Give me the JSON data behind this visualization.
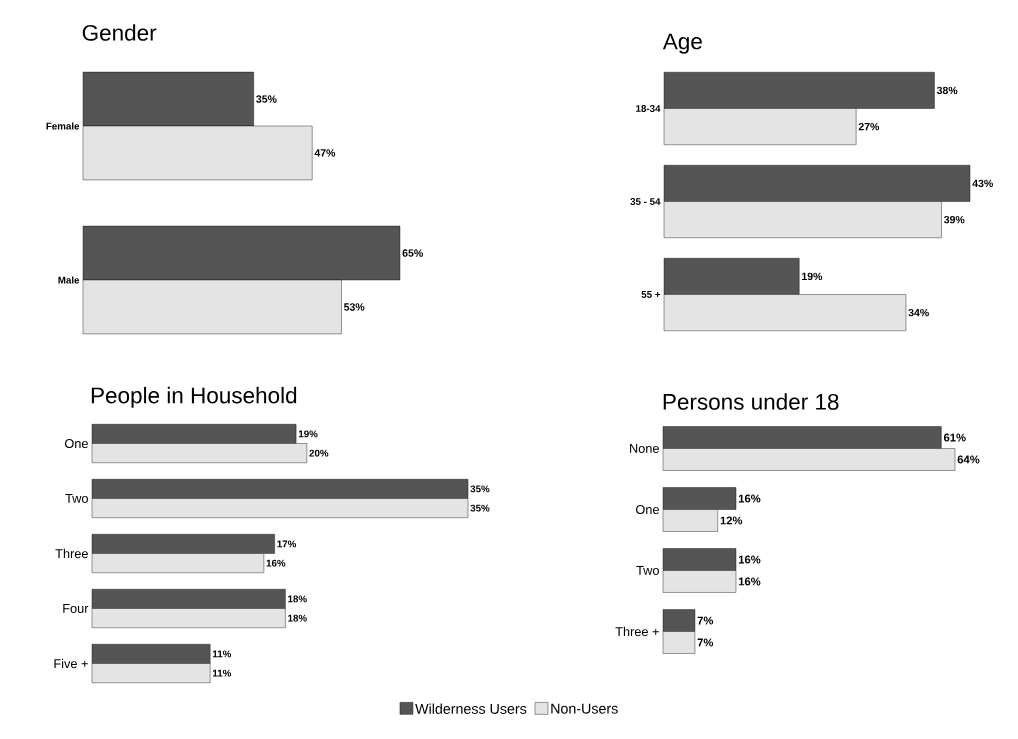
{
  "chart_data": [
    {
      "type": "bar",
      "orientation": "horizontal",
      "title": "Gender",
      "categories": [
        "Female",
        "Male"
      ],
      "series": [
        {
          "color": "#555555",
          "values": [
            35,
            65
          ],
          "value_labels": [
            "35%",
            "65%"
          ]
        },
        {
          "color": "#e4e4e4",
          "values": [
            47,
            53
          ],
          "value_labels": [
            "47%",
            "53%"
          ]
        }
      ]
    },
    {
      "type": "bar",
      "orientation": "horizontal",
      "title": "Age",
      "categories": [
        "18-34",
        "35 - 54",
        "55 +"
      ],
      "series": [
        {
          "color": "#555555",
          "values": [
            38,
            43,
            19
          ],
          "value_labels": [
            "38%",
            "43%",
            "19%"
          ]
        },
        {
          "color": "#e4e4e4",
          "values": [
            27,
            39,
            34
          ],
          "value_labels": [
            "27%",
            "39%",
            "34%"
          ]
        }
      ]
    },
    {
      "type": "bar",
      "orientation": "horizontal",
      "title": "People in Household",
      "categories": [
        "One",
        "Two",
        "Three",
        "Four",
        "Five +"
      ],
      "legend": "bottom",
      "series": [
        {
          "name": "Wilderness Users",
          "color": "#555555",
          "values": [
            19,
            35,
            17,
            18,
            11
          ],
          "value_labels": [
            "19%",
            "35%",
            "17%",
            "18%",
            "11%"
          ]
        },
        {
          "name": "Non-Users",
          "color": "#e4e4e4",
          "values": [
            20,
            35,
            16,
            18,
            11
          ],
          "value_labels": [
            "20%",
            "35%",
            "16%",
            "18%",
            "11%"
          ]
        }
      ]
    },
    {
      "type": "bar",
      "orientation": "horizontal",
      "title": "Persons under 18",
      "categories": [
        "None",
        "One",
        "Two",
        "Three +"
      ],
      "series": [
        {
          "color": "#555555",
          "values": [
            61,
            16,
            16,
            7
          ],
          "value_labels": [
            "61%",
            "16%",
            "16%",
            "7%"
          ]
        },
        {
          "color": "#e4e4e4",
          "values": [
            64,
            12,
            16,
            7
          ],
          "value_labels": [
            "64%",
            "12%",
            "16%",
            "7%"
          ]
        }
      ]
    }
  ]
}
